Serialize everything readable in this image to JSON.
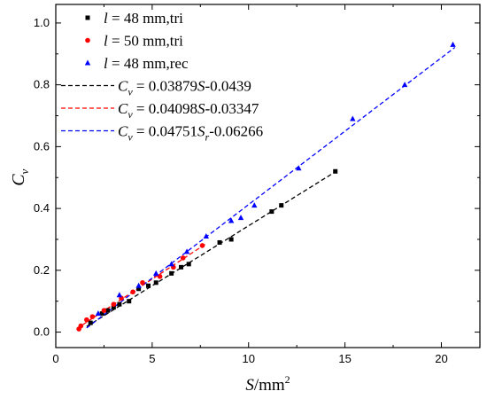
{
  "chart_data": {
    "type": "scatter",
    "xlabel": "S/mm²",
    "ylabel": "Cv",
    "xlim": [
      0,
      22
    ],
    "ylim": [
      -0.05,
      1.06
    ],
    "x_ticks": [
      0,
      5,
      10,
      15,
      20
    ],
    "y_ticks": [
      0.0,
      0.2,
      0.4,
      0.6,
      0.8,
      1.0
    ],
    "grid": false,
    "legend_position": "top-left",
    "series": [
      {
        "name": "l = 48 mm,tri",
        "marker": "square",
        "color": "#000000",
        "x": [
          1.8,
          2.4,
          2.7,
          3.0,
          3.3,
          3.8,
          4.3,
          4.8,
          5.2,
          6.0,
          6.5,
          6.9,
          8.5,
          9.1,
          11.2,
          11.7,
          14.5
        ],
        "y": [
          0.03,
          0.06,
          0.07,
          0.08,
          0.09,
          0.1,
          0.14,
          0.15,
          0.16,
          0.19,
          0.21,
          0.22,
          0.29,
          0.3,
          0.39,
          0.41,
          0.52
        ]
      },
      {
        "name": "l = 50 mm,tri",
        "marker": "circle",
        "color": "#ff0000",
        "x": [
          1.2,
          1.3,
          1.6,
          1.9,
          2.5,
          3.0,
          3.4,
          4.0,
          4.5,
          5.4,
          6.1,
          6.6,
          7.6
        ],
        "y": [
          0.01,
          0.02,
          0.04,
          0.05,
          0.07,
          0.09,
          0.11,
          0.13,
          0.16,
          0.18,
          0.21,
          0.24,
          0.28
        ]
      },
      {
        "name": "l = 48 mm,rec",
        "marker": "triangle",
        "color": "#0000ff",
        "x": [
          2.2,
          3.3,
          4.3,
          5.2,
          6.0,
          6.8,
          7.8,
          9.1,
          9.6,
          10.3,
          12.6,
          15.4,
          18.1,
          20.6
        ],
        "y": [
          0.06,
          0.12,
          0.15,
          0.19,
          0.22,
          0.26,
          0.31,
          0.36,
          0.37,
          0.41,
          0.53,
          0.69,
          0.8,
          0.93
        ]
      }
    ],
    "fits": [
      {
        "name_prefix": "C",
        "name_sub": "v",
        "name_rest": " = 0.03879",
        "name_var": "S",
        "name_var_sub": "",
        "name_tail": "-0.0439",
        "color": "#000000",
        "dash": "dashed",
        "slope": 0.03879,
        "intercept": -0.0439,
        "x_range": [
          1.6,
          14.6
        ]
      },
      {
        "name_prefix": "C",
        "name_sub": "v",
        "name_rest": " = 0.04098",
        "name_var": "S",
        "name_var_sub": "",
        "name_tail": "-0.03347",
        "color": "#ff0000",
        "dash": "dashed",
        "slope": 0.04098,
        "intercept": -0.03347,
        "x_range": [
          1.1,
          7.8
        ]
      },
      {
        "name_prefix": "C",
        "name_sub": "v",
        "name_rest": " = 0.04751",
        "name_var": "S",
        "name_var_sub": "r",
        "name_tail": "-0.06266",
        "color": "#0000ff",
        "dash": "dashed",
        "slope": 0.04751,
        "intercept": -0.06266,
        "x_range": [
          1.6,
          20.7
        ]
      }
    ]
  }
}
